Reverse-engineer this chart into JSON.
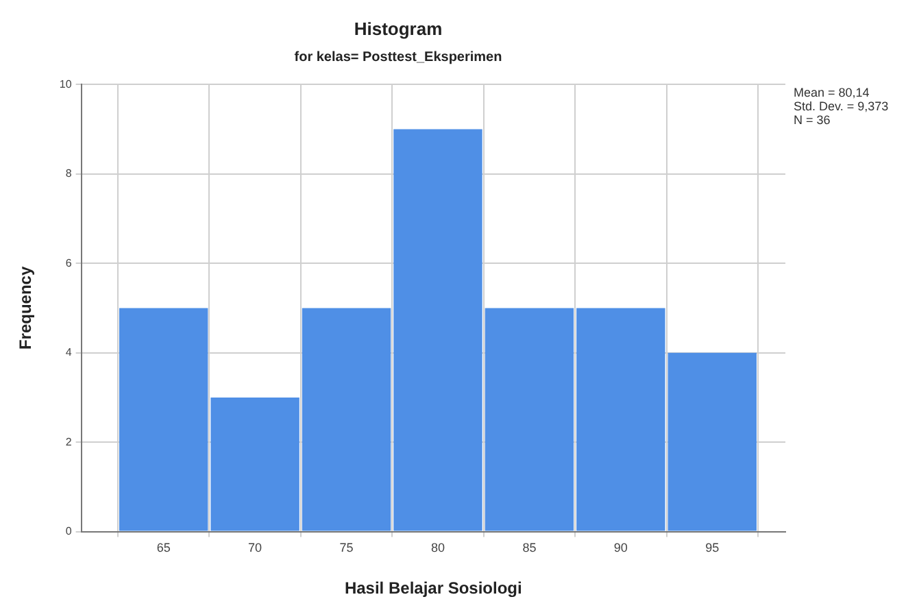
{
  "chart_data": {
    "type": "histogram",
    "title": "Histogram",
    "subtitle": "for kelas= Posttest_Eksperimen",
    "xlabel": "Hasil Belajar Sosiologi",
    "ylabel": "Frequency",
    "bins": [
      62.5,
      67.5,
      72.5,
      77.5,
      82.5,
      87.5,
      92.5,
      97.5
    ],
    "values": [
      5,
      3,
      5,
      9,
      5,
      5,
      4
    ],
    "color": "#4f8fe6",
    "xlim": [
      60.5,
      99
    ],
    "xticks": [
      65,
      70,
      75,
      80,
      85,
      90,
      95
    ],
    "ylim": [
      0,
      10
    ],
    "yticks": [
      0,
      2,
      4,
      6,
      8,
      10
    ],
    "grid": true,
    "annotations": [
      "Mean = 80,14",
      "Std. Dev. = 9,373",
      "N = 36"
    ]
  }
}
